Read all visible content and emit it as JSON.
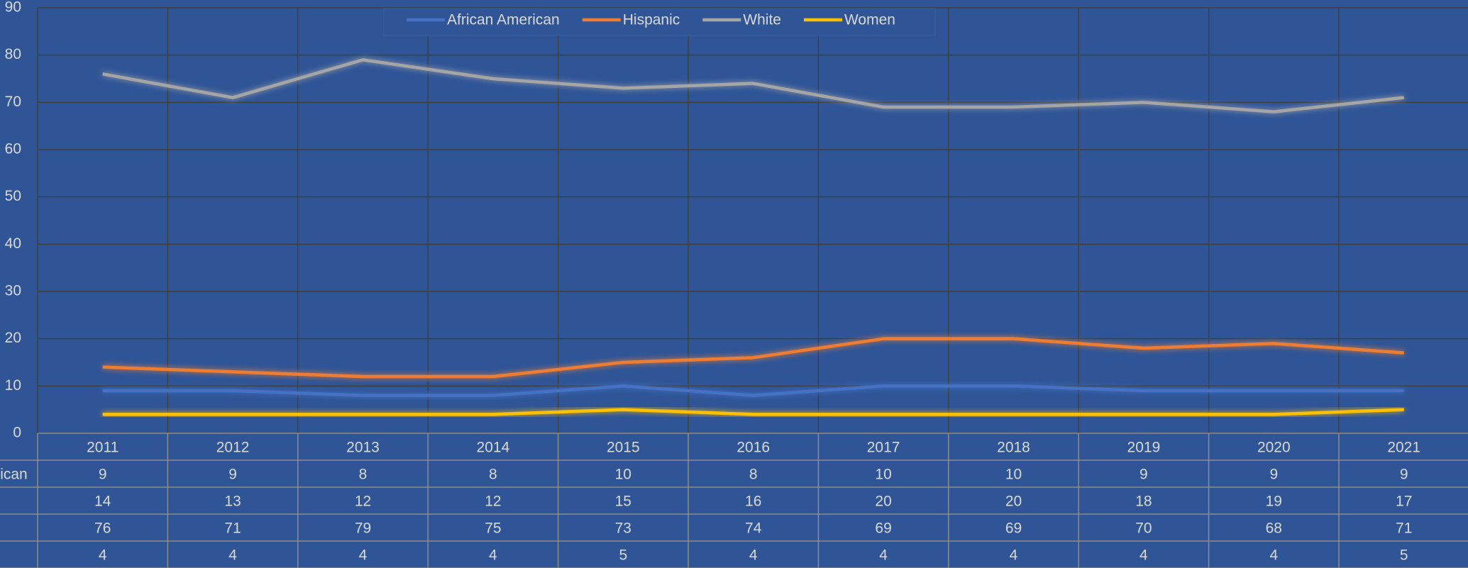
{
  "chart_data": {
    "type": "line",
    "categories": [
      "2011",
      "2012",
      "2013",
      "2014",
      "2015",
      "2016",
      "2017",
      "2018",
      "2019",
      "2020",
      "2021"
    ],
    "series": [
      {
        "name": "African American",
        "color": "#4472c4",
        "values": [
          9,
          9,
          8,
          8,
          10,
          8,
          10,
          10,
          9,
          9,
          9
        ]
      },
      {
        "name": "Hispanic",
        "color": "#ed7d31",
        "values": [
          14,
          13,
          12,
          12,
          15,
          16,
          20,
          20,
          18,
          19,
          17
        ]
      },
      {
        "name": "White",
        "color": "#a5a5a5",
        "values": [
          76,
          71,
          79,
          75,
          73,
          74,
          69,
          69,
          70,
          68,
          71
        ]
      },
      {
        "name": "Women",
        "color": "#ffc000",
        "values": [
          4,
          4,
          4,
          4,
          5,
          4,
          4,
          4,
          4,
          4,
          5
        ]
      }
    ],
    "ylim": [
      0,
      90
    ],
    "yticks": [
      0,
      10,
      20,
      30,
      40,
      50,
      60,
      70,
      80,
      90
    ],
    "grid": true,
    "legend": "top",
    "data_table": true
  }
}
